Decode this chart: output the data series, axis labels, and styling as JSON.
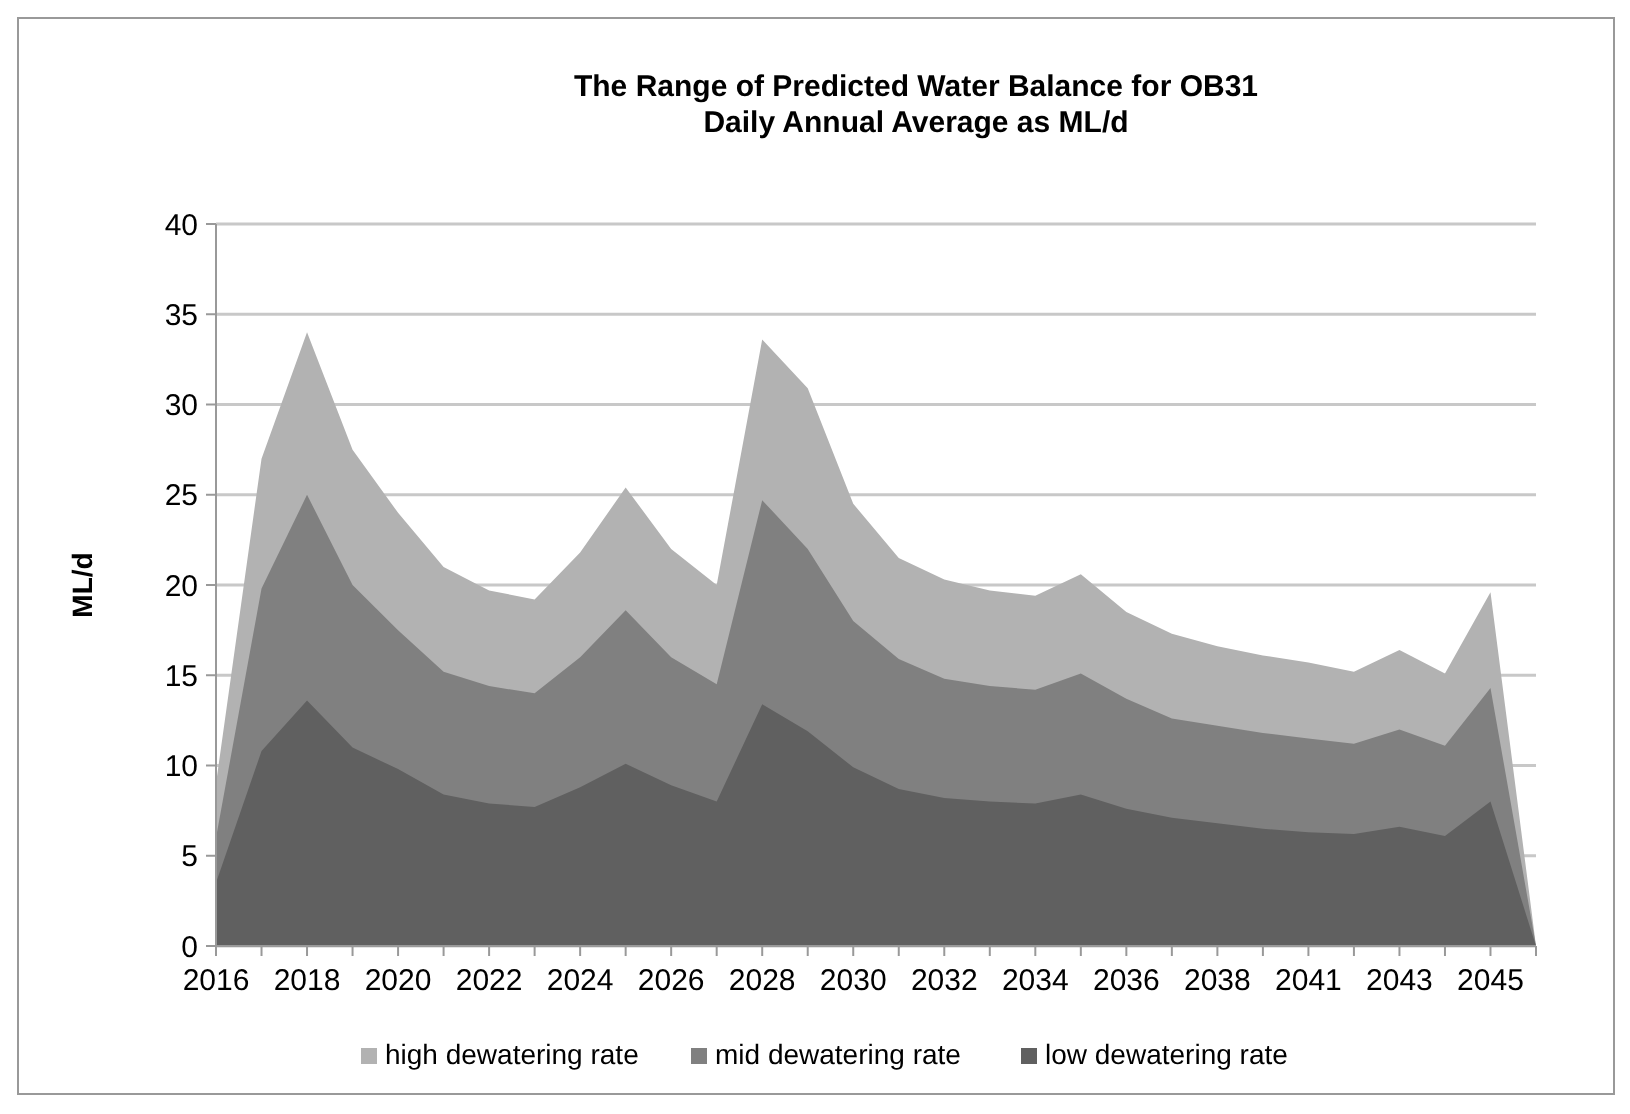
{
  "chart_data": {
    "type": "area",
    "title": "The Range of Predicted Water Balance for OB31",
    "subtitle": "Daily Annual Average as ML/d",
    "ylabel": "ML/d",
    "categories": [
      "2016",
      null,
      "2018",
      null,
      "2020",
      null,
      "2022",
      null,
      "2024",
      null,
      "2026",
      null,
      "2028",
      null,
      "2030",
      null,
      "2032",
      null,
      "2034",
      null,
      "2036",
      null,
      "2038",
      null,
      "2041",
      null,
      "2043",
      null,
      "2045",
      null
    ],
    "series": [
      {
        "name": "high dewatering rate",
        "color": "#b2b2b2",
        "values": [
          9,
          27,
          34,
          27.5,
          24,
          21,
          19.7,
          19.2,
          21.8,
          25.4,
          22,
          20,
          33.6,
          30.9,
          24.5,
          21.5,
          20.3,
          19.7,
          19.4,
          20.6,
          18.5,
          17.3,
          16.6,
          16.1,
          15.7,
          15.2,
          16.4,
          15.1,
          19.6,
          0
        ]
      },
      {
        "name": "mid dewatering rate",
        "color": "#808080",
        "values": [
          6,
          19.8,
          25,
          20,
          17.5,
          15.2,
          14.4,
          14,
          16,
          18.6,
          16,
          14.5,
          24.7,
          22,
          18,
          15.9,
          14.8,
          14.4,
          14.2,
          15.1,
          13.7,
          12.6,
          12.2,
          11.8,
          11.5,
          11.2,
          12,
          11.1,
          14.3,
          0
        ]
      },
      {
        "name": "low dewatering rate",
        "color": "#606060",
        "values": [
          3.5,
          10.8,
          13.6,
          11,
          9.8,
          8.4,
          7.9,
          7.7,
          8.8,
          10.1,
          8.9,
          8,
          13.4,
          11.9,
          9.9,
          8.7,
          8.2,
          8,
          7.9,
          8.4,
          7.6,
          7.1,
          6.8,
          6.5,
          6.3,
          6.2,
          6.6,
          6.1,
          8,
          0
        ]
      }
    ],
    "ylim": [
      0,
      40
    ],
    "yticks": [
      0,
      5,
      10,
      15,
      20,
      25,
      30,
      35,
      40
    ],
    "grid": "y",
    "legend": "bottom"
  }
}
